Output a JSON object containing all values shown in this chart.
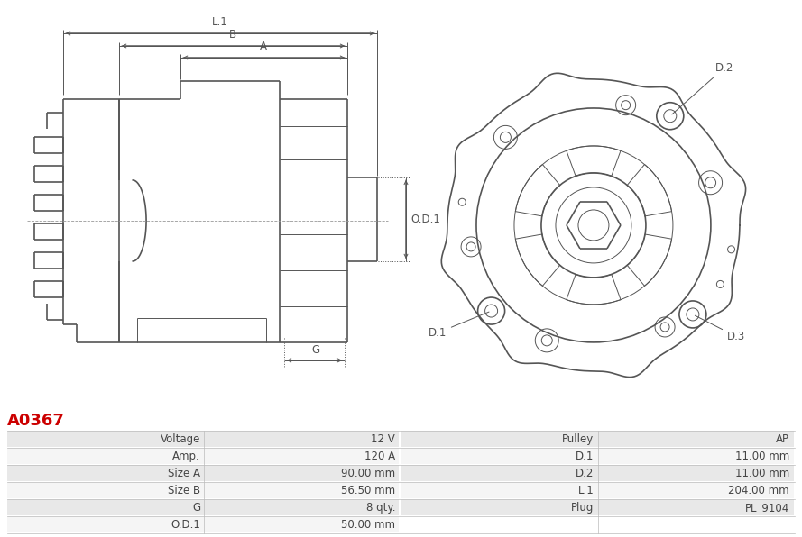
{
  "title": "A0367",
  "title_color": "#cc0000",
  "bg_color": "#ffffff",
  "table_data": {
    "left_labels": [
      "Voltage",
      "Amp.",
      "Size A",
      "Size B",
      "G",
      "O.D.1"
    ],
    "left_values": [
      "12 V",
      "120 A",
      "90.00 mm",
      "56.50 mm",
      "8 qty.",
      "50.00 mm"
    ],
    "right_labels": [
      "Pulley",
      "D.1",
      "D.2",
      "L.1",
      "Plug",
      ""
    ],
    "right_values": [
      "AP",
      "11.00 mm",
      "11.00 mm",
      "204.00 mm",
      "PL_9104",
      ""
    ]
  },
  "row_bg_odd": "#e8e8e8",
  "row_bg_even": "#f5f5f5",
  "line_color": "#555555",
  "dim_color": "#555555"
}
